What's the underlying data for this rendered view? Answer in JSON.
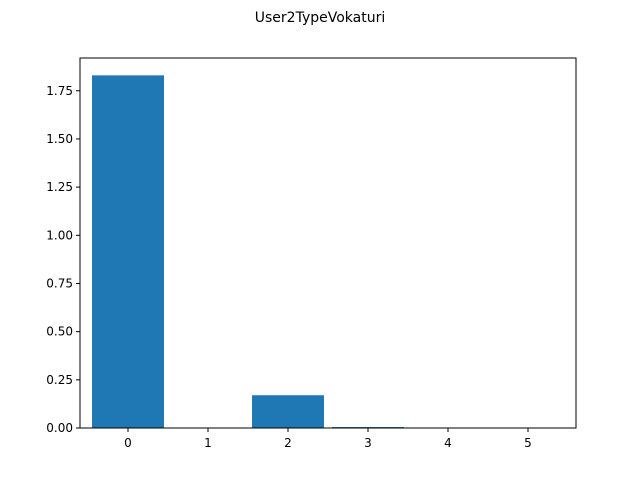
{
  "chart_data": {
    "type": "bar",
    "title": "User2TypeVokaturi",
    "xlabel": "",
    "ylabel": "",
    "categories": [
      0,
      1,
      2,
      3,
      4,
      5
    ],
    "values": [
      1.83,
      0.0,
      0.17,
      0.005,
      0.0,
      0.0
    ],
    "ylim": [
      0,
      1.92
    ],
    "xlim": [
      -0.6,
      5.6
    ],
    "bar_width": 0.9,
    "yticks": [
      "0.00",
      "0.25",
      "0.50",
      "0.75",
      "1.00",
      "1.25",
      "1.50",
      "1.75"
    ],
    "ytick_values": [
      0,
      0.25,
      0.5,
      0.75,
      1.0,
      1.25,
      1.5,
      1.75
    ],
    "xticks": [
      "0",
      "1",
      "2",
      "3",
      "4",
      "5"
    ],
    "grid": false,
    "colors": {
      "bar": "#1f77b4",
      "axis": "#000000"
    }
  }
}
